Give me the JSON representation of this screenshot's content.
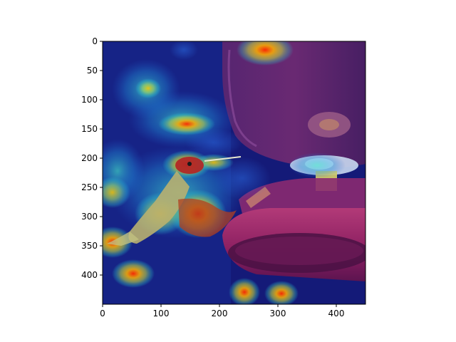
{
  "image": {
    "description_tags": [
      "hummingbird",
      "nectar-feeder",
      "attention-heatmap-overlay"
    ],
    "colormap": "jet",
    "colors": {
      "background": "#ffffff",
      "axis": "#000000",
      "feeder_red": "#8a1a5a",
      "feeder_dark": "#3a1650",
      "heat_low": "#10106e",
      "heat_mid": "#20c8c8",
      "heat_high": "#ff3000",
      "bird_body": "#b8b070",
      "bird_head": "#cf2a2a"
    }
  },
  "axes": {
    "x_range": [
      0,
      450
    ],
    "y_range": [
      0,
      450
    ],
    "y_inverted": true,
    "x_ticks": [
      {
        "value": 0,
        "label": "0"
      },
      {
        "value": 100,
        "label": "100"
      },
      {
        "value": 200,
        "label": "200"
      },
      {
        "value": 300,
        "label": "300"
      },
      {
        "value": 400,
        "label": "400"
      }
    ],
    "y_ticks": [
      {
        "value": 0,
        "label": "0"
      },
      {
        "value": 50,
        "label": "50"
      },
      {
        "value": 100,
        "label": "100"
      },
      {
        "value": 150,
        "label": "150"
      },
      {
        "value": 200,
        "label": "200"
      },
      {
        "value": 250,
        "label": "250"
      },
      {
        "value": 300,
        "label": "300"
      },
      {
        "value": 350,
        "label": "350"
      },
      {
        "value": 400,
        "label": "400"
      }
    ]
  }
}
